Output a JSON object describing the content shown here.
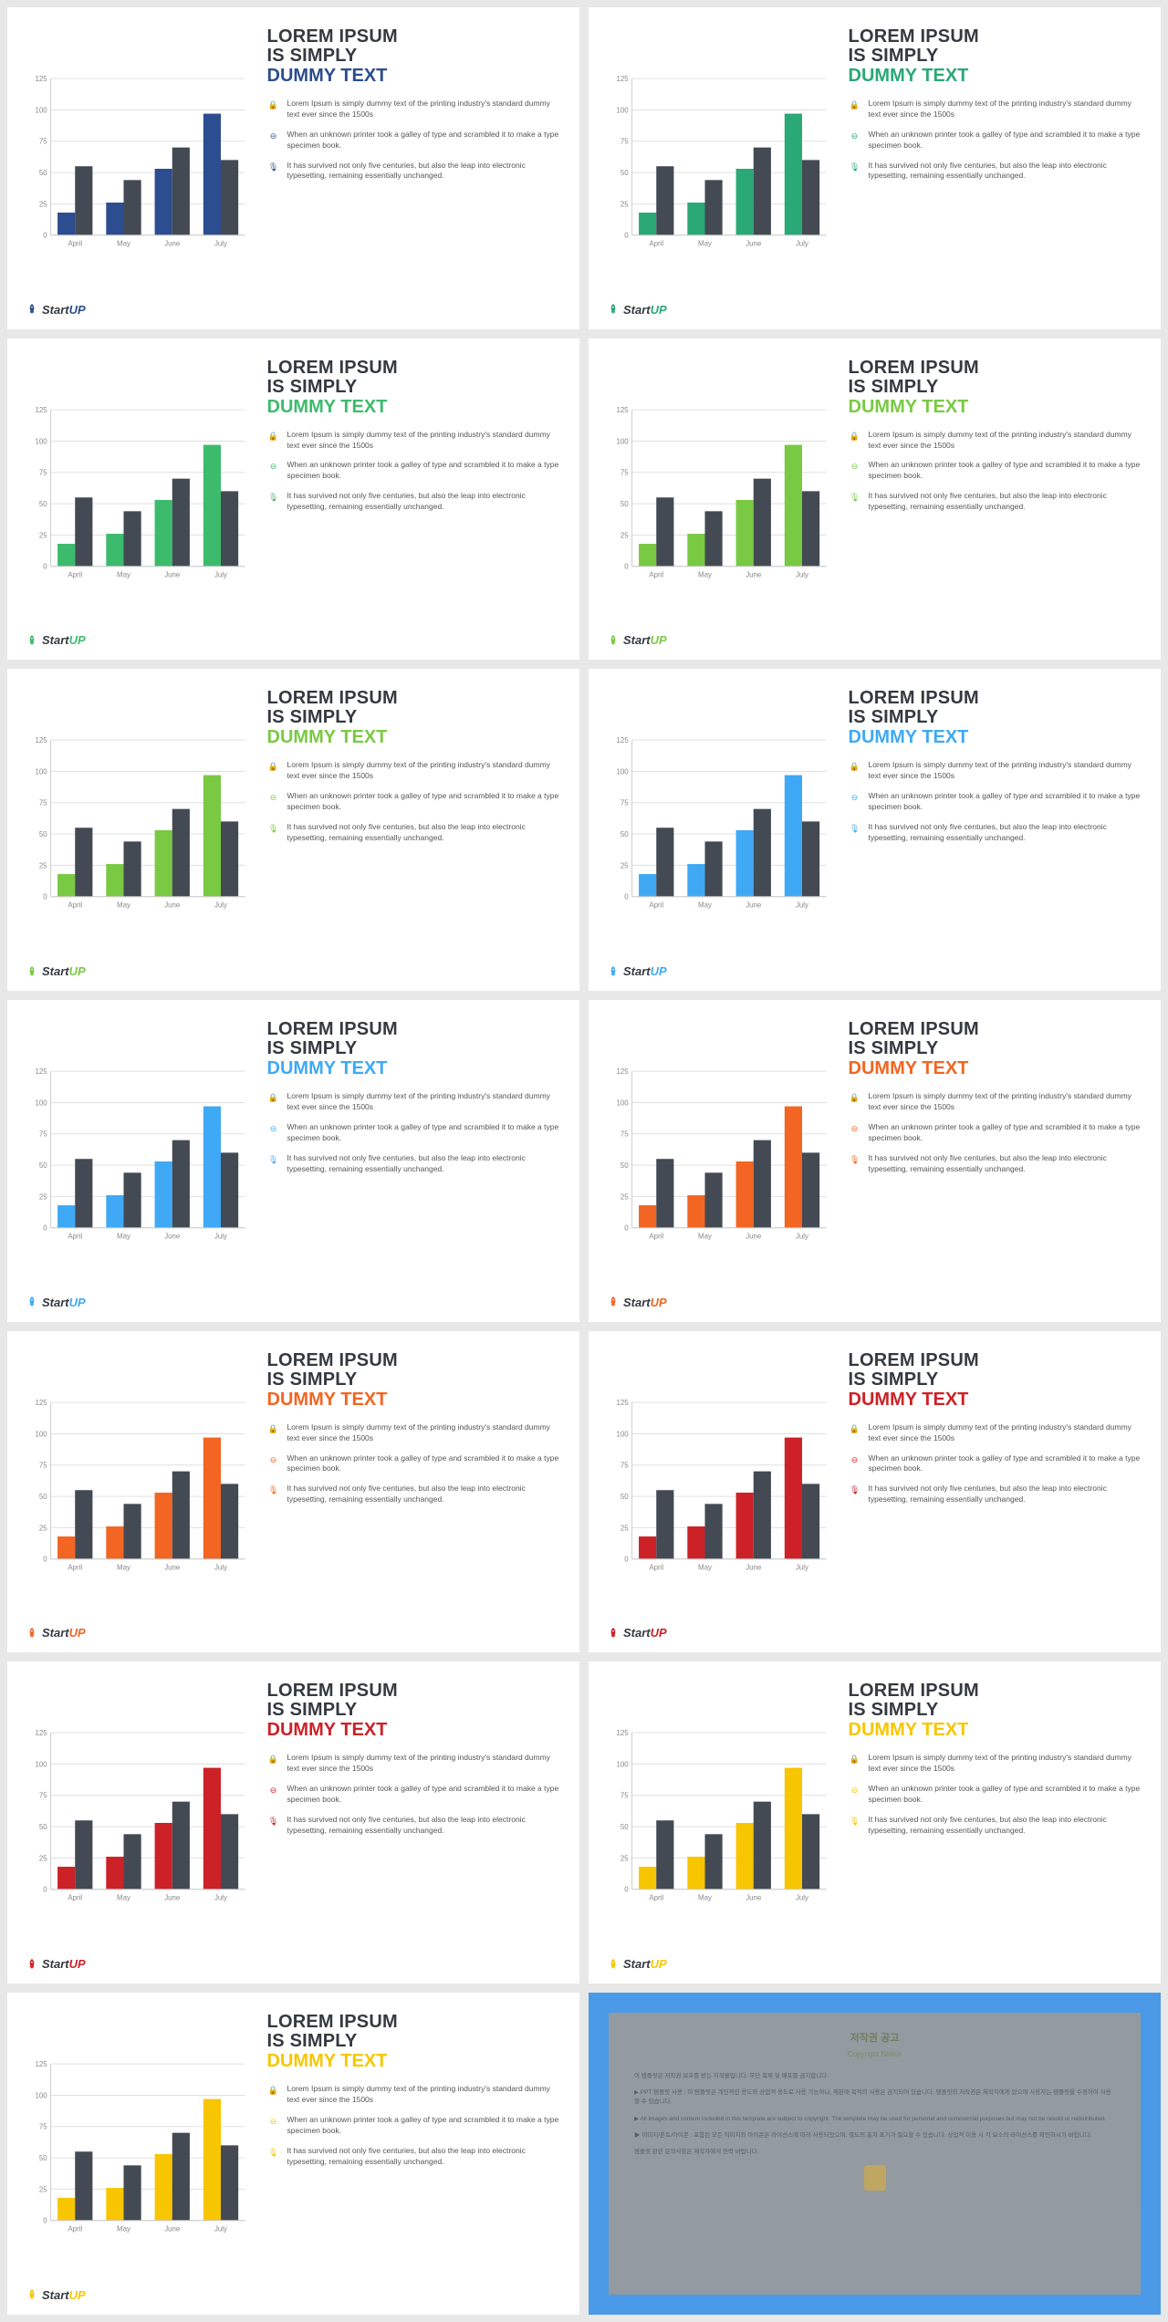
{
  "chart_template": {
    "type": "bar",
    "categories": [
      "April",
      "May",
      "June",
      "July"
    ],
    "series": [
      {
        "name": "primary",
        "values": [
          18,
          26,
          53,
          97
        ]
      },
      {
        "name": "secondary",
        "values": [
          55,
          44,
          70,
          60
        ]
      }
    ],
    "secondary_color": "#434a54",
    "ylim": [
      0,
      125
    ],
    "ytick_step": 25,
    "yticks": [
      0,
      25,
      50,
      75,
      100,
      125
    ],
    "grid_color": "#e0e0e0",
    "axis_color": "#cccccc",
    "background_color": "#ffffff",
    "bar_group_width": 0.72,
    "label_fontsize": 8,
    "label_color": "#888888"
  },
  "text_content": {
    "title_line1": "LOREM IPSUM",
    "title_line2": "IS SIMPLY",
    "title_line3": "DUMMY TEXT",
    "bullets": [
      "Lorem Ipsum is simply dummy text of the printing industry's standard dummy text ever since the 1500s",
      "When an unknown printer took a galley of type and scrambled it to make a type specimen book.",
      "It has survived not only five centuries, but also the leap into electronic typesetting, remaining essentially unchanged."
    ],
    "bullet_icons": [
      "🔒",
      "⊖",
      "🎙"
    ]
  },
  "logo": {
    "part1": "Start",
    "part2": "UP",
    "part1_color": "#353a40"
  },
  "slides": [
    {
      "accent": "#2c4d8f",
      "primary_bar": "#2c4d8f"
    },
    {
      "accent": "#2aa876",
      "primary_bar": "#2aa876"
    },
    {
      "accent": "#3dbb6d",
      "primary_bar": "#3dbb6d"
    },
    {
      "accent": "#7ac943",
      "primary_bar": "#7ac943"
    },
    {
      "accent": "#7ac943",
      "primary_bar": "#7ac943"
    },
    {
      "accent": "#3fa9f5",
      "primary_bar": "#3fa9f5"
    },
    {
      "accent": "#3fa9f5",
      "primary_bar": "#3fa9f5"
    },
    {
      "accent": "#f26522",
      "primary_bar": "#f26522"
    },
    {
      "accent": "#f26522",
      "primary_bar": "#f26522"
    },
    {
      "accent": "#cc2127",
      "primary_bar": "#cc2127"
    },
    {
      "accent": "#cc2127",
      "primary_bar": "#cc2127"
    },
    {
      "accent": "#f7c600",
      "primary_bar": "#f7c600"
    },
    {
      "accent": "#f7c600",
      "primary_bar": "#f7c600"
    }
  ],
  "copyright": {
    "title_ko": "저작권 공고",
    "title_en": "Copyright Notice",
    "outer_bg": "#4a9ae8",
    "inner_bg": "#9a9a9a",
    "paragraphs": [
      "이 템플릿은 저작권 보호를 받는 저작물입니다. 무단 복제 및 배포를 금지합니다.",
      "▶ PPT 템플릿 사용 : 이 템플릿은 개인적인 용도와 상업적 용도로 사용 가능하나, 재판매 목적의 사용은 금지되어 있습니다. 템플릿의 저작권은 제작자에게 있으며 사용자는 템플릿을 수정하여 사용할 수 있습니다.",
      "▶ All images and content included in this template are subject to copyright. The template may be used for personal and commercial purposes but may not be resold or redistributed.",
      "▶ 이미지/폰트/아이콘 : 포함된 모든 이미지와 아이콘은 라이선스에 따라 사용되었으며, 별도의 출처 표기가 필요할 수 있습니다. 상업적 이용 시 각 요소의 라이선스를 확인하시기 바랍니다.",
      "템플릿 관련 문의사항은 제작자에게 연락 바랍니다."
    ]
  },
  "colors": {
    "page_bg": "#e8e8e8",
    "slide_bg": "#ffffff",
    "heading_color": "#353a40",
    "body_text": "#555555"
  }
}
